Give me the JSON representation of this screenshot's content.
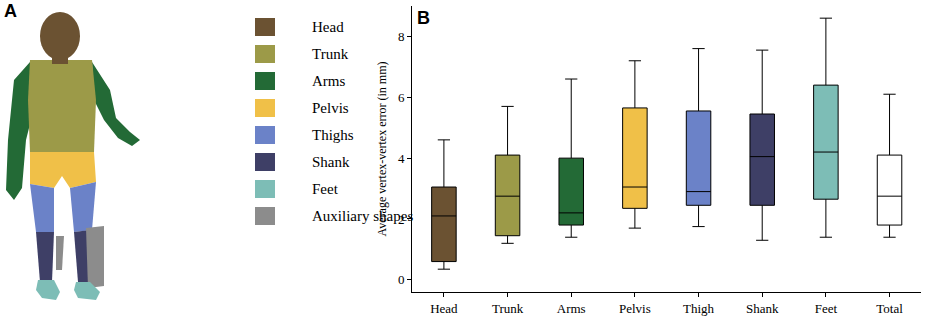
{
  "panel_a": {
    "label": "A",
    "legend": [
      {
        "name": "Head",
        "color": "#6b5232"
      },
      {
        "name": "Trunk",
        "color": "#9c9a48"
      },
      {
        "name": "Arms",
        "color": "#236a36"
      },
      {
        "name": "Pelvis",
        "color": "#f0c048"
      },
      {
        "name": "Thighs",
        "color": "#6b82c8"
      },
      {
        "name": "Shank",
        "color": "#3e3f66"
      },
      {
        "name": "Feet",
        "color": "#7dbdb6"
      },
      {
        "name": "Auxiliary shapes",
        "color": "#8c8c8c"
      }
    ]
  },
  "chart_data": {
    "type": "box",
    "label": "B",
    "y_label": "Average vertex-vertex error (in mm)",
    "categories": [
      "Head",
      "Trunk",
      "Arms",
      "Pelvis",
      "Thigh",
      "Shank",
      "Feet",
      "Total"
    ],
    "colors": [
      "#6b5232",
      "#9c9a48",
      "#236a36",
      "#f0c048",
      "#6b82c8",
      "#3e3f66",
      "#7dbdb6",
      "#ffffff"
    ],
    "lowerfence": [
      0.35,
      1.2,
      1.4,
      1.7,
      1.75,
      1.3,
      1.4,
      1.4
    ],
    "q1": [
      0.6,
      1.45,
      1.8,
      2.35,
      2.45,
      2.45,
      2.65,
      1.8
    ],
    "median": [
      2.1,
      2.75,
      2.2,
      3.05,
      2.9,
      4.05,
      4.2,
      2.75
    ],
    "q3": [
      3.05,
      4.1,
      4.0,
      5.65,
      5.55,
      5.45,
      6.4,
      4.1
    ],
    "upperfence": [
      4.6,
      5.7,
      6.6,
      7.2,
      7.6,
      7.55,
      8.6,
      6.1
    ],
    "ylim": [
      -0.4,
      9
    ],
    "yticks": [
      0,
      2,
      4,
      6,
      8
    ],
    "grid": false
  }
}
